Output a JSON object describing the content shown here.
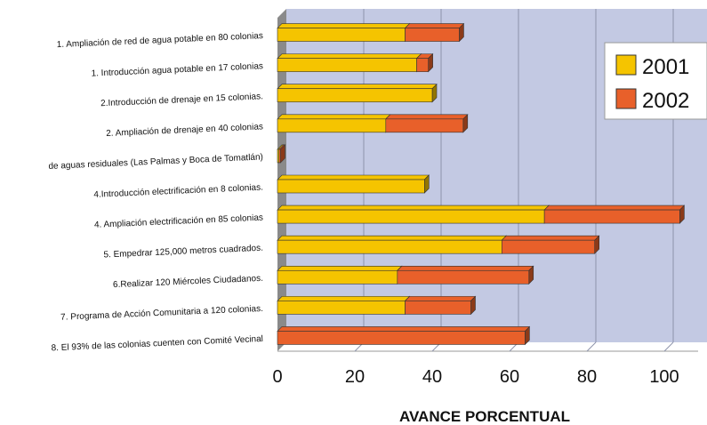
{
  "chart_data": {
    "type": "bar",
    "orientation": "horizontal",
    "stacked": true,
    "xlabel": "AVANCE PORCENTUAL",
    "xlim": [
      0,
      105
    ],
    "xticks": [
      0,
      20,
      40,
      60,
      80,
      100
    ],
    "grid": true,
    "legend_position": "top-right",
    "categories": [
      "1. Ampliación de red de agua potable en 80 colonias",
      "1. Introducción agua potable en 17 colonias",
      "2.Introducción de drenaje en 15 colonias.",
      "2. Ampliación de drenaje en 40 colonias",
      "de aguas residuales (Las Palmas y Boca de Tomatlán)",
      "4.Introducción electrificación en 8 colonias.",
      "4. Ampliación electrificación en 85 colonias",
      "5. Empedrar 125,000 metros cuadrados.",
      "6.Realizar 120 Miércoles Ciudadanos.",
      "7. Programa de Acción Comunitaria a 120 colonias.",
      "8. El 93% de las colonias cuenten con Comité Vecinal"
    ],
    "series": [
      {
        "name": "2001",
        "color": "#f5c400",
        "values": [
          33,
          36,
          40,
          28,
          0.4,
          38,
          69,
          58,
          31,
          33,
          0
        ]
      },
      {
        "name": "2002",
        "color": "#e8602a",
        "values": [
          14,
          3,
          0,
          20,
          0.4,
          0,
          35,
          24,
          34,
          17,
          64
        ]
      }
    ]
  },
  "colors": {
    "plot_background": "#c3c9e3",
    "wall_side": "#8a8a8a",
    "gridline": "#8e93ab"
  }
}
